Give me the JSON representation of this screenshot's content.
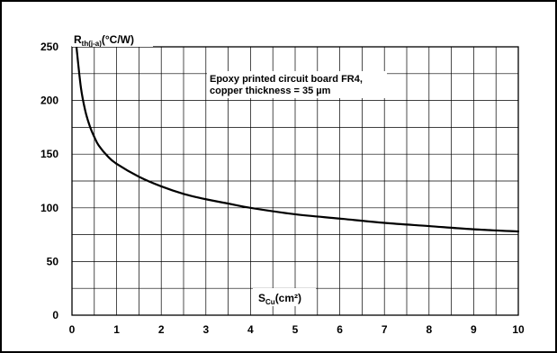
{
  "chart_data": {
    "type": "line",
    "ylabel_main": "R",
    "ylabel_sub": "th(j-a)",
    "ylabel_unit": "(°C/W)",
    "xlabel_main": "S",
    "xlabel_sub": "Cu",
    "xlabel_unit": "(cm²)",
    "annotation": [
      "Epoxy printed circuit board FR4,",
      "copper thickness = 35 µm"
    ],
    "xlim": [
      0,
      10
    ],
    "ylim": [
      0,
      250
    ],
    "x_ticks": [
      "0",
      "1",
      "2",
      "3",
      "4",
      "5",
      "6",
      "7",
      "8",
      "9",
      "10"
    ],
    "y_ticks": [
      "0",
      "50",
      "100",
      "150",
      "200",
      "250"
    ],
    "grid": true,
    "series": [
      {
        "x": [
          0.1,
          0.2,
          0.3,
          0.4,
          0.5,
          0.6,
          0.8,
          1.0,
          1.5,
          2.0,
          2.5,
          3.0,
          3.5,
          4.0,
          5.0,
          6.0,
          7.0,
          8.0,
          9.0,
          10.0
        ],
        "y": [
          250,
          212,
          190,
          176,
          166,
          158,
          148,
          141,
          129,
          120,
          113,
          108,
          104,
          100,
          94,
          90,
          86,
          83,
          80,
          78
        ]
      }
    ]
  }
}
